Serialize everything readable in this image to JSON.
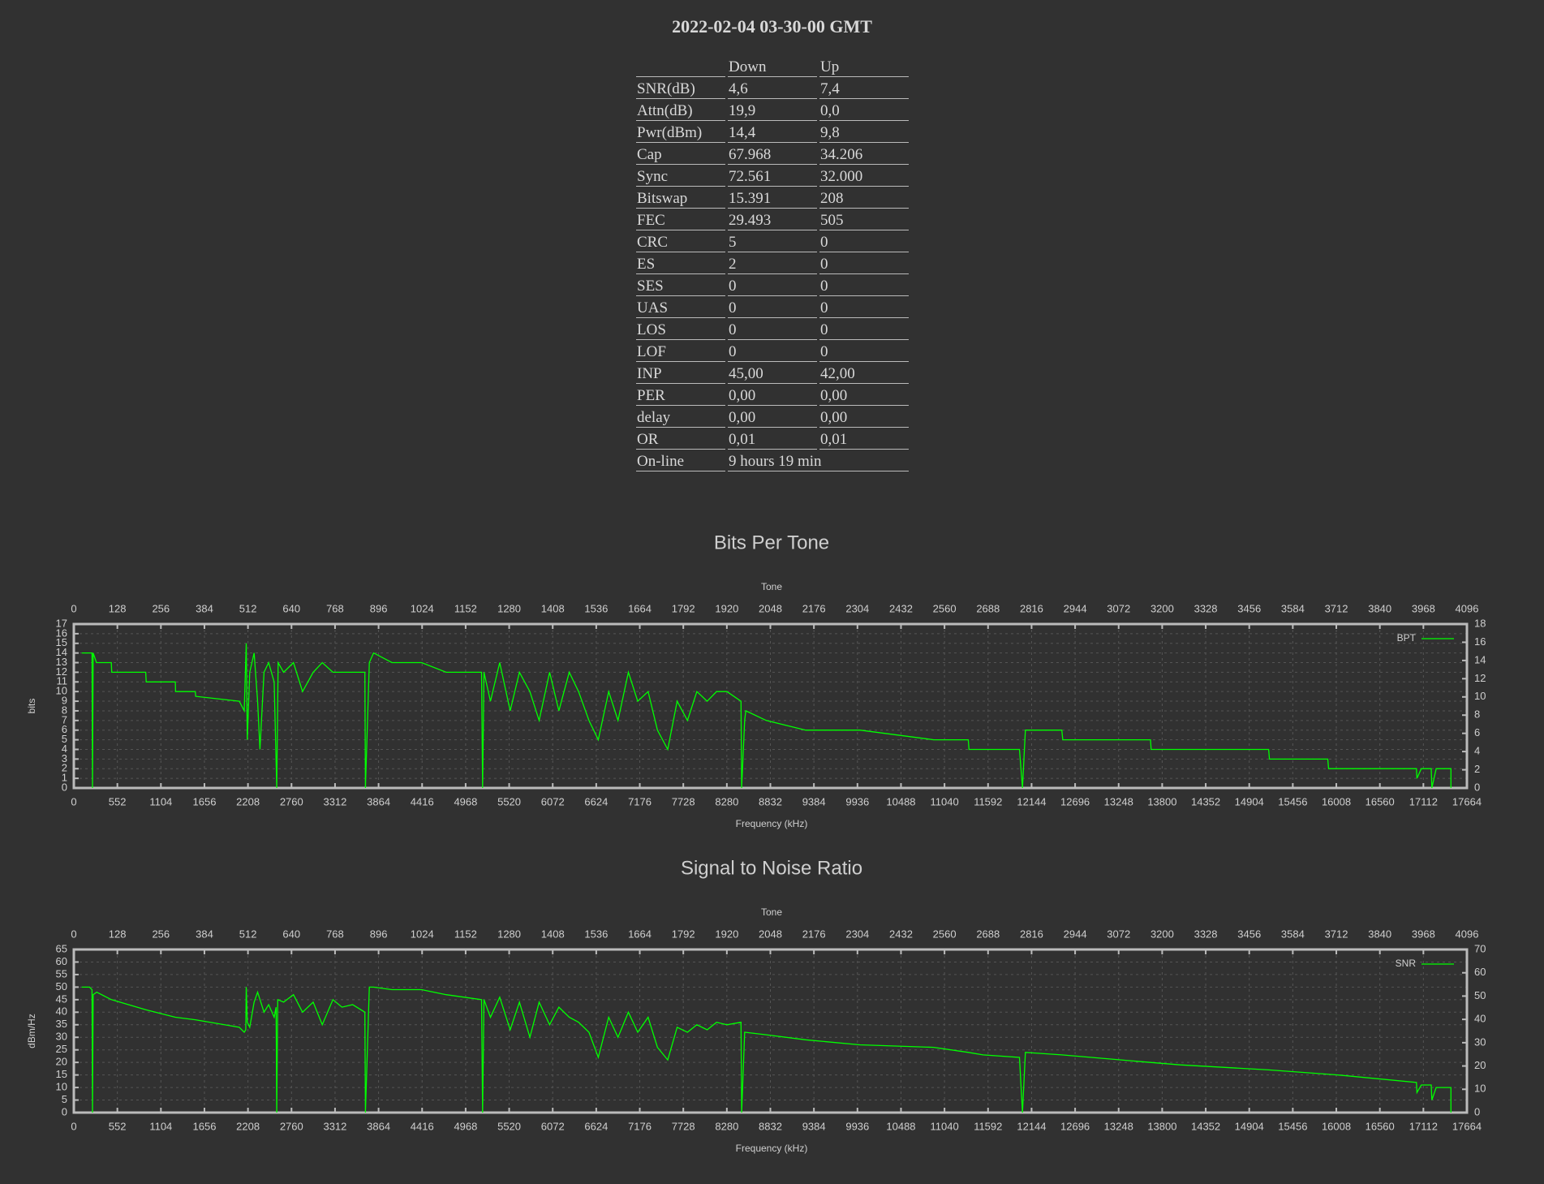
{
  "title": "2022-02-04 03-30-00 GMT",
  "table": {
    "header": [
      "Down",
      "Up"
    ],
    "rows": [
      [
        "SNR(dB)",
        "4,6",
        "7,4"
      ],
      [
        "Attn(dB)",
        "19,9",
        "0,0"
      ],
      [
        "Pwr(dBm)",
        "14,4",
        "9,8"
      ],
      [
        "Cap",
        "67.968",
        "34.206"
      ],
      [
        "Sync",
        "72.561",
        "32.000"
      ],
      [
        "Bitswap",
        "15.391",
        "208"
      ],
      [
        "FEC",
        "29.493",
        "505"
      ],
      [
        "CRC",
        "5",
        "0"
      ],
      [
        "ES",
        "2",
        "0"
      ],
      [
        "SES",
        "0",
        "0"
      ],
      [
        "UAS",
        "0",
        "0"
      ],
      [
        "LOS",
        "0",
        "0"
      ],
      [
        "LOF",
        "0",
        "0"
      ],
      [
        "INP",
        "45,00",
        "42,00"
      ],
      [
        "PER",
        "0,00",
        "0,00"
      ],
      [
        "delay",
        "0,00",
        "0,00"
      ],
      [
        "OR",
        "0,01",
        "0,01"
      ],
      [
        "On-line",
        "9 hours 19 min"
      ]
    ]
  },
  "chart_data": [
    {
      "type": "line",
      "title": "Bits Per Tone",
      "xlabel": "Frequency (kHz)",
      "x2label": "Tone",
      "ylabel": "bits",
      "xlim": [
        0,
        17664
      ],
      "xticks": [
        0,
        552,
        1104,
        1656,
        2208,
        2760,
        3312,
        3864,
        4416,
        4968,
        5520,
        6072,
        6624,
        7176,
        7728,
        8280,
        8832,
        9384,
        9936,
        10488,
        11040,
        11592,
        12144,
        12696,
        13248,
        13800,
        14352,
        14904,
        15456,
        16008,
        16560,
        17112,
        17664
      ],
      "x2lim": [
        0,
        4096
      ],
      "x2ticks": [
        0,
        128,
        256,
        384,
        512,
        640,
        768,
        896,
        1024,
        1152,
        1280,
        1408,
        1536,
        1664,
        1792,
        1920,
        2048,
        2176,
        2304,
        2432,
        2560,
        2688,
        2816,
        2944,
        3072,
        3200,
        3328,
        3456,
        3584,
        3712,
        3840,
        3968,
        4096
      ],
      "ylim": [
        0,
        17
      ],
      "yticks": [
        0,
        1,
        2,
        3,
        4,
        5,
        6,
        7,
        8,
        9,
        10,
        11,
        12,
        13,
        14,
        15,
        16,
        17
      ],
      "y2lim": [
        0,
        18
      ],
      "y2ticks": [
        0,
        2,
        4,
        6,
        8,
        10,
        12,
        14,
        16,
        18
      ],
      "grid": true,
      "legend": "top-right",
      "x": [
        100,
        230,
        237,
        245,
        287,
        475,
        480,
        912,
        918,
        1287,
        1290,
        1540,
        1545,
        2098,
        2160,
        2186,
        2200,
        2230,
        2286,
        2330,
        2360,
        2411,
        2470,
        2540,
        2573,
        2590,
        2660,
        2785,
        2900,
        3035,
        3150,
        3285,
        3535,
        3690,
        3697,
        3747,
        3800,
        4034,
        4409,
        4721,
        5170,
        5183,
        5200,
        5283,
        5400,
        5533,
        5650,
        5783,
        5900,
        6033,
        6150,
        6282,
        6400,
        6532,
        6650,
        6782,
        6900,
        7032,
        7150,
        7282,
        7400,
        7531,
        7650,
        7781,
        7900,
        8031,
        8150,
        8281,
        8460,
        8468,
        8506,
        8520,
        8780,
        9280,
        9967,
        10904,
        11341,
        11350,
        11990,
        12028,
        12065,
        12527,
        12540,
        13652,
        13660,
        15150,
        15160,
        15900,
        15910,
        17024,
        17030,
        17086,
        17211,
        17220,
        17274,
        17461,
        17461
      ],
      "series": [
        {
          "name": "BPT",
          "color": "#00ff00",
          "values": [
            14,
            14,
            0,
            14,
            13,
            13,
            12,
            12,
            11,
            11,
            10,
            10,
            9.5,
            9,
            8,
            15,
            5,
            12,
            14,
            9,
            4,
            12,
            13,
            11,
            0,
            13,
            12,
            13,
            10,
            12,
            13,
            12,
            12,
            12,
            0,
            13,
            14,
            13,
            13,
            12,
            12,
            0,
            12,
            9,
            13,
            8,
            12,
            10,
            7,
            12,
            8,
            12,
            10,
            7,
            5,
            10,
            7,
            12,
            9,
            10,
            6,
            4,
            9,
            7,
            10,
            9,
            10,
            10,
            9,
            0,
            7,
            8,
            7,
            6,
            6,
            5,
            5,
            4,
            4,
            0,
            6,
            6,
            5,
            5,
            4,
            4,
            3,
            3,
            2,
            2,
            1,
            2,
            2,
            0,
            2,
            2,
            0
          ]
        }
      ]
    },
    {
      "type": "line",
      "title": "Signal to Noise Ratio",
      "xlabel": "Frequency (kHz)",
      "x2label": "Tone",
      "ylabel": "dBm/Hz",
      "xlim": [
        0,
        17664
      ],
      "xticks": [
        0,
        552,
        1104,
        1656,
        2208,
        2760,
        3312,
        3864,
        4416,
        4968,
        5520,
        6072,
        6624,
        7176,
        7728,
        8280,
        8832,
        9384,
        9936,
        10488,
        11040,
        11592,
        12144,
        12696,
        13248,
        13800,
        14352,
        14904,
        15456,
        16008,
        16560,
        17112,
        17664
      ],
      "x2lim": [
        0,
        4096
      ],
      "x2ticks": [
        0,
        128,
        256,
        384,
        512,
        640,
        768,
        896,
        1024,
        1152,
        1280,
        1408,
        1536,
        1664,
        1792,
        1920,
        2048,
        2176,
        2304,
        2432,
        2560,
        2688,
        2816,
        2944,
        3072,
        3200,
        3328,
        3456,
        3584,
        3712,
        3840,
        3968,
        4096
      ],
      "ylim": [
        0,
        65
      ],
      "yticks": [
        0,
        5,
        10,
        15,
        20,
        25,
        30,
        35,
        40,
        45,
        50,
        55,
        60,
        65
      ],
      "y2lim": [
        0,
        70
      ],
      "y2ticks": [
        0,
        10,
        20,
        30,
        40,
        50,
        60,
        70
      ],
      "grid": true,
      "legend": "top-right",
      "x": [
        100,
        200,
        230,
        237,
        245,
        290,
        475,
        912,
        1287,
        1540,
        2098,
        2160,
        2180,
        2186,
        2200,
        2230,
        2286,
        2330,
        2411,
        2470,
        2540,
        2565,
        2573,
        2585,
        2660,
        2785,
        2900,
        3035,
        3150,
        3285,
        3400,
        3535,
        3690,
        3697,
        3747,
        3800,
        4034,
        4409,
        4721,
        5170,
        5183,
        5200,
        5283,
        5400,
        5533,
        5650,
        5783,
        5900,
        6033,
        6150,
        6282,
        6400,
        6532,
        6650,
        6782,
        6900,
        7032,
        7150,
        7282,
        7400,
        7531,
        7650,
        7781,
        7900,
        8031,
        8150,
        8281,
        8460,
        8468,
        8506,
        8780,
        9280,
        9967,
        10904,
        11341,
        11528,
        11990,
        12028,
        12065,
        12527,
        13652,
        14026,
        15150,
        16025,
        17024,
        17030,
        17086,
        17211,
        17220,
        17274,
        17461,
        17461
      ],
      "series": [
        {
          "name": "SNR",
          "color": "#00ff00",
          "values": [
            50,
            50,
            49,
            0,
            47,
            48,
            45,
            41,
            38,
            37,
            34,
            32,
            33,
            50,
            36,
            34,
            44,
            48,
            40,
            43,
            38,
            42,
            0,
            45,
            44,
            47,
            40,
            44,
            35,
            45,
            42,
            43,
            40,
            0,
            50,
            50,
            49,
            49,
            47,
            45,
            0,
            45,
            38,
            46,
            33,
            44,
            30,
            44,
            35,
            42,
            38,
            36,
            32,
            22,
            38,
            30,
            40,
            32,
            38,
            26,
            21,
            34,
            32,
            35,
            33,
            36,
            35,
            36,
            0,
            32,
            31,
            29,
            27,
            26,
            24,
            23,
            22,
            0,
            24,
            23,
            20,
            19,
            17,
            15,
            12,
            8,
            11,
            11,
            5,
            10,
            10,
            0
          ]
        }
      ]
    }
  ]
}
